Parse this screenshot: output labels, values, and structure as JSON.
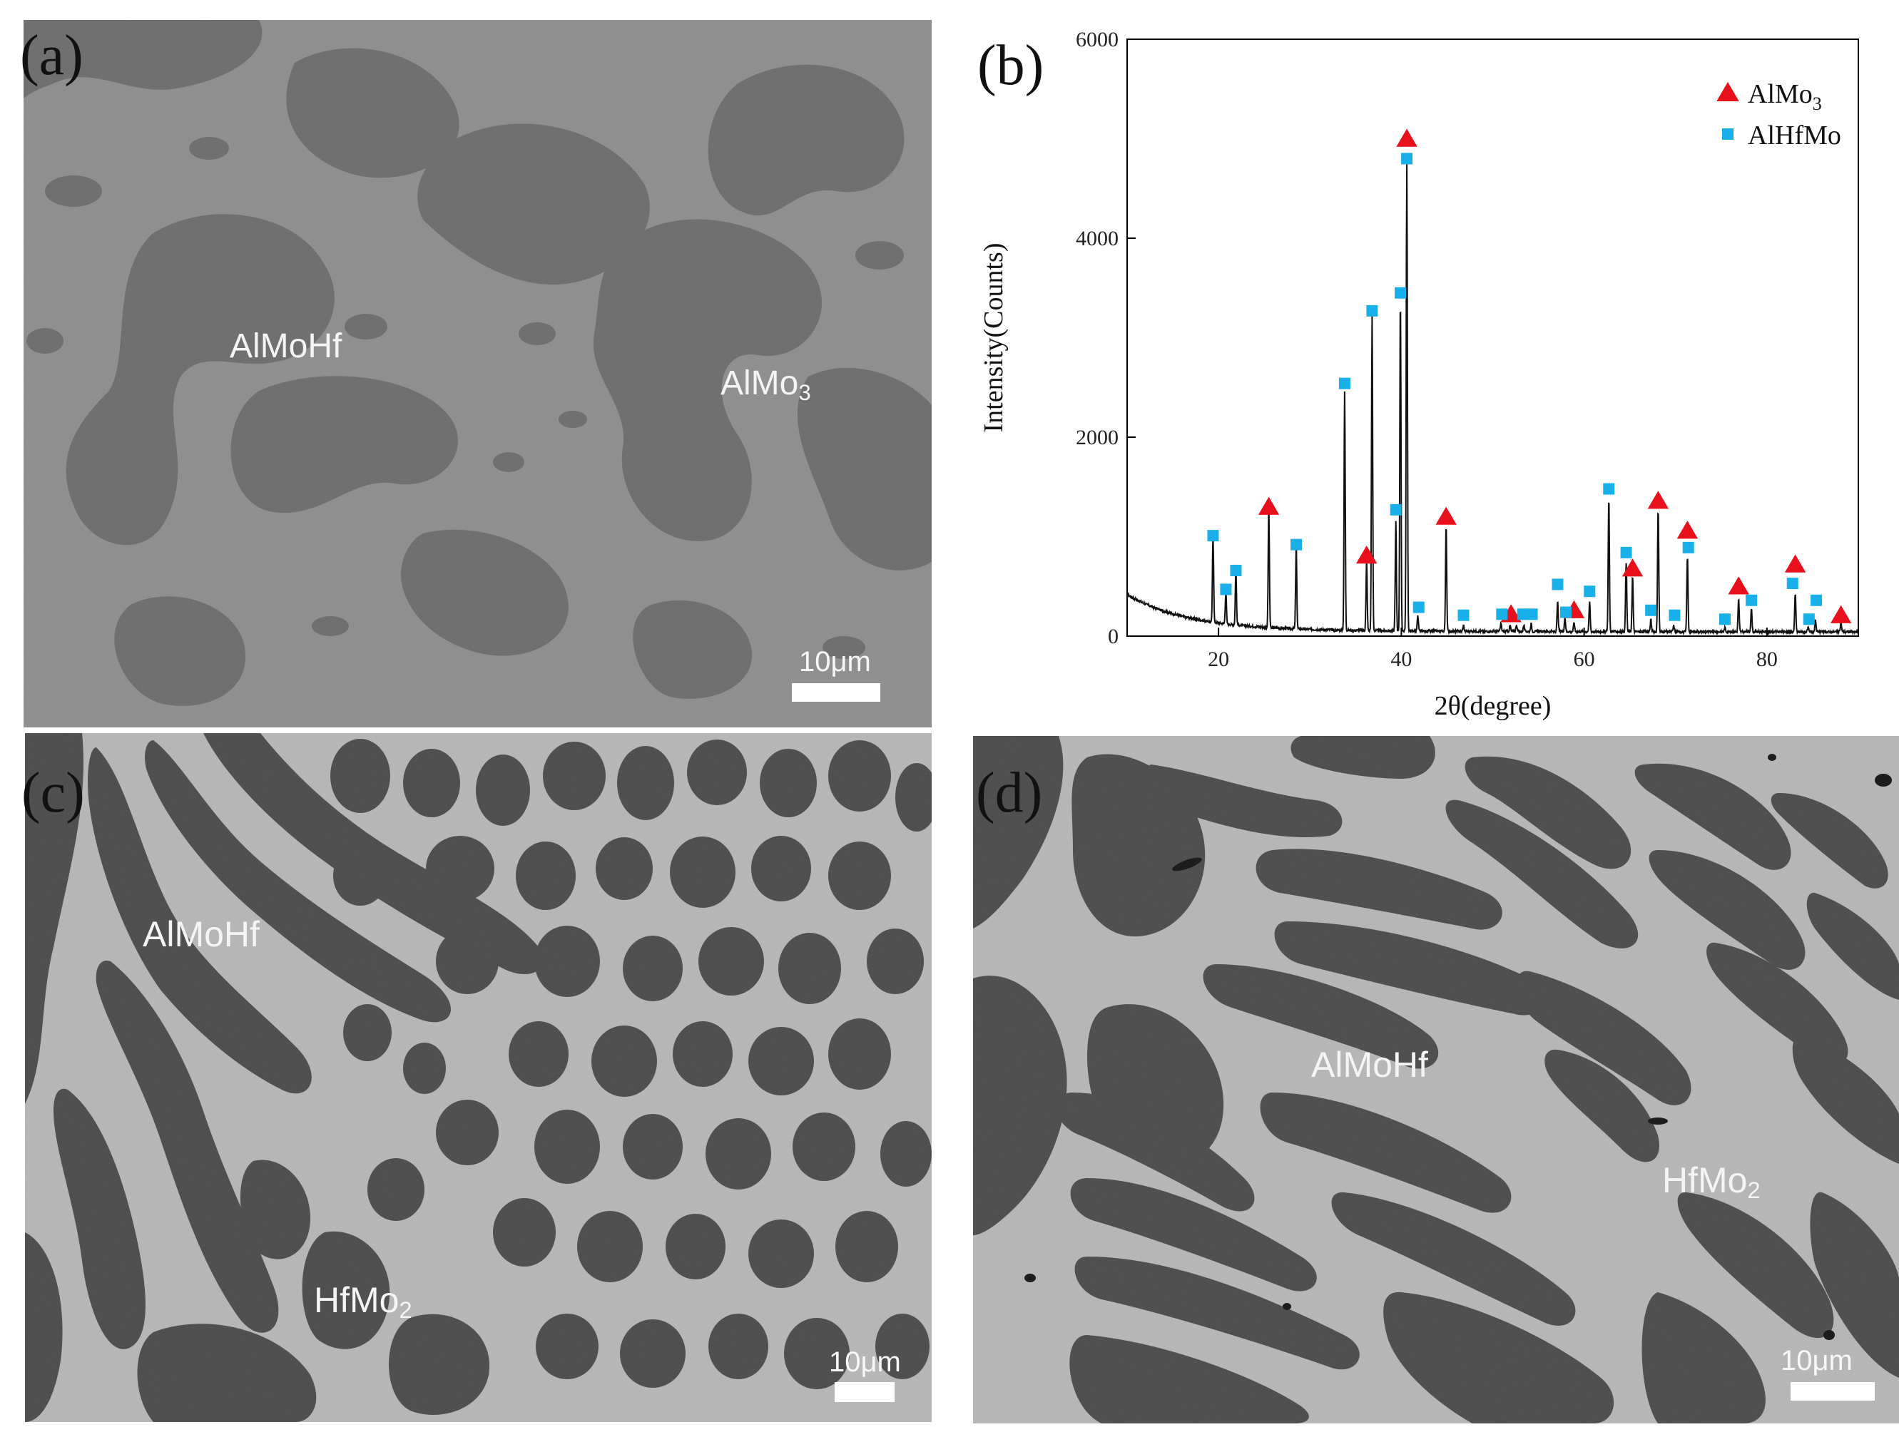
{
  "panels": {
    "a": {
      "label": "(a)",
      "phases": [
        {
          "text": "AlMoHf",
          "sub": ""
        },
        {
          "text": "AlMo",
          "sub": "3"
        }
      ],
      "scale": "10μm"
    },
    "b": {
      "label": "(b)"
    },
    "c": {
      "label": "(c)",
      "phases": [
        {
          "text": "AlMoHf",
          "sub": ""
        },
        {
          "text": "HfMo",
          "sub": "2"
        }
      ],
      "scale": "10μm"
    },
    "d": {
      "label": "(d)",
      "phases": [
        {
          "text": "AlMoHf",
          "sub": ""
        },
        {
          "text": "HfMo",
          "sub": "2"
        }
      ],
      "scale": "10μm"
    }
  },
  "colors": {
    "almo3_marker": "#e8101a",
    "alhfmo_marker": "#19b0ea",
    "sem_light_a": "#8d8d8d",
    "sem_dark_a": "#6c6c6c",
    "sem_light_cd": "#b6b6b6",
    "sem_dark_cd": "#484848"
  },
  "chart_data": {
    "type": "line",
    "xlabel": "2θ(degree)",
    "ylabel": "Intensity(Counts)",
    "xlim": [
      10,
      90
    ],
    "ylim": [
      0,
      6000
    ],
    "xticks": [
      20,
      40,
      60,
      80
    ],
    "yticks": [
      0,
      2000,
      4000,
      6000
    ],
    "legend": {
      "placement": "top-right",
      "entries": [
        {
          "name": "AlMo",
          "sub": "3",
          "marker": "triangle"
        },
        {
          "name": "AlHfMo",
          "sub": "",
          "marker": "square"
        }
      ]
    },
    "peaks": [
      [
        19.4,
        880
      ],
      [
        20.8,
        320
      ],
      [
        21.9,
        560
      ],
      [
        25.5,
        1200
      ],
      [
        28.5,
        820
      ],
      [
        33.8,
        2400
      ],
      [
        36.2,
        700
      ],
      [
        36.8,
        3150
      ],
      [
        39.4,
        1100
      ],
      [
        39.9,
        3350
      ],
      [
        40.6,
        4700
      ],
      [
        41.8,
        150
      ],
      [
        44.9,
        1080
      ],
      [
        46.8,
        60
      ],
      [
        50.9,
        80
      ],
      [
        51.9,
        60
      ],
      [
        52.6,
        70
      ],
      [
        53.4,
        60
      ],
      [
        54.2,
        80
      ],
      [
        57.1,
        300
      ],
      [
        57.9,
        140
      ],
      [
        58.9,
        90
      ],
      [
        60.6,
        300
      ],
      [
        62.7,
        1350
      ],
      [
        64.6,
        700
      ],
      [
        65.3,
        560
      ],
      [
        67.3,
        120
      ],
      [
        68.1,
        1250
      ],
      [
        69.8,
        60
      ],
      [
        71.3,
        760
      ],
      [
        75.4,
        40
      ],
      [
        76.9,
        330
      ],
      [
        78.3,
        230
      ],
      [
        83.1,
        380
      ],
      [
        84.5,
        40
      ],
      [
        85.3,
        110
      ],
      [
        88.1,
        100
      ]
    ],
    "almo3_markers": [
      [
        25.5,
        1300
      ],
      [
        36.2,
        810
      ],
      [
        40.6,
        5000
      ],
      [
        44.9,
        1200
      ],
      [
        52.0,
        220
      ],
      [
        58.9,
        260
      ],
      [
        65.3,
        680
      ],
      [
        68.1,
        1360
      ],
      [
        71.3,
        1060
      ],
      [
        76.9,
        500
      ],
      [
        83.1,
        720
      ],
      [
        88.1,
        210
      ]
    ],
    "alhfmo_markers": [
      [
        19.4,
        1010
      ],
      [
        20.8,
        470
      ],
      [
        21.9,
        660
      ],
      [
        28.5,
        920
      ],
      [
        33.8,
        2540
      ],
      [
        36.8,
        3270
      ],
      [
        39.4,
        1270
      ],
      [
        39.9,
        3450
      ],
      [
        40.6,
        4800
      ],
      [
        41.9,
        290
      ],
      [
        46.8,
        210
      ],
      [
        51.0,
        220
      ],
      [
        53.3,
        220
      ],
      [
        54.3,
        220
      ],
      [
        57.1,
        520
      ],
      [
        58.0,
        240
      ],
      [
        60.6,
        450
      ],
      [
        62.7,
        1480
      ],
      [
        64.6,
        840
      ],
      [
        67.3,
        260
      ],
      [
        69.9,
        210
      ],
      [
        71.4,
        890
      ],
      [
        75.4,
        170
      ],
      [
        78.3,
        360
      ],
      [
        82.8,
        530
      ],
      [
        84.6,
        170
      ],
      [
        85.4,
        360
      ]
    ]
  }
}
